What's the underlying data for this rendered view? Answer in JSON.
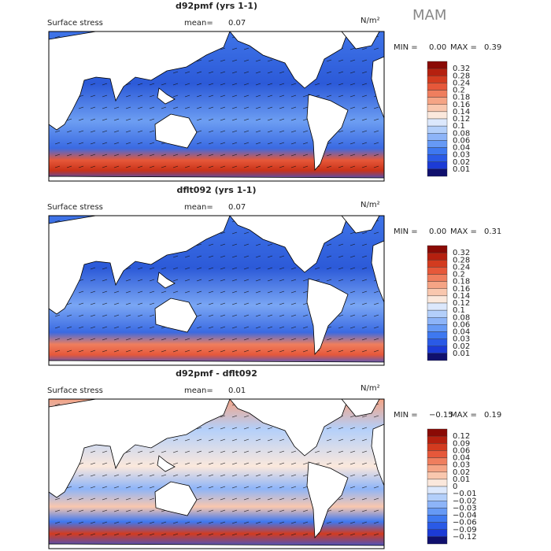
{
  "season": "MAM",
  "panels": [
    {
      "title": "d92pmf (yrs 1-1)",
      "subtitle": "Surface stress",
      "mean_label": "mean=",
      "mean": "0.07",
      "units": "N/m²",
      "min_label": "MIN =",
      "min": "0.00",
      "max_label": "MAX =",
      "max": "0.39",
      "levels": [
        "0.32",
        "0.28",
        "0.24",
        "0.2",
        "0.18",
        "0.16",
        "0.14",
        "0.12",
        "0.1",
        "0.08",
        "0.06",
        "0.04",
        "0.03",
        "0.02",
        "0.01"
      ]
    },
    {
      "title": "dflt092 (yrs 1-1)",
      "subtitle": "Surface stress",
      "mean_label": "mean=",
      "mean": "0.07",
      "units": "N/m²",
      "min_label": "MIN =",
      "min": "0.00",
      "max_label": "MAX =",
      "max": "0.31",
      "levels": [
        "0.32",
        "0.28",
        "0.24",
        "0.2",
        "0.18",
        "0.16",
        "0.14",
        "0.12",
        "0.1",
        "0.08",
        "0.06",
        "0.04",
        "0.03",
        "0.02",
        "0.01"
      ]
    },
    {
      "title": "d92pmf - dflt092",
      "subtitle": "Surface stress",
      "mean_label": "mean=",
      "mean": "0.01",
      "units": "N/m²",
      "min_label": "MIN =",
      "min": "−0.15",
      "max_label": "MAX =",
      "max": "0.19",
      "levels": [
        "0.12",
        "0.09",
        "0.06",
        "0.04",
        "0.03",
        "0.02",
        "0.01",
        "0",
        "−0.01",
        "−0.02",
        "−0.03",
        "−0.04",
        "−0.06",
        "−0.09",
        "−0.12"
      ]
    }
  ],
  "colorbar_colors": [
    "#8a0a05",
    "#b5200f",
    "#d33b1f",
    "#e6583a",
    "#ef7e5e",
    "#f5a485",
    "#f9c7ae",
    "#fbe8dc",
    "#dce8fc",
    "#b3cffa",
    "#8db4f8",
    "#6699f5",
    "#3e78f0",
    "#2a5ae6",
    "#1c3bd6",
    "#10106e"
  ]
}
